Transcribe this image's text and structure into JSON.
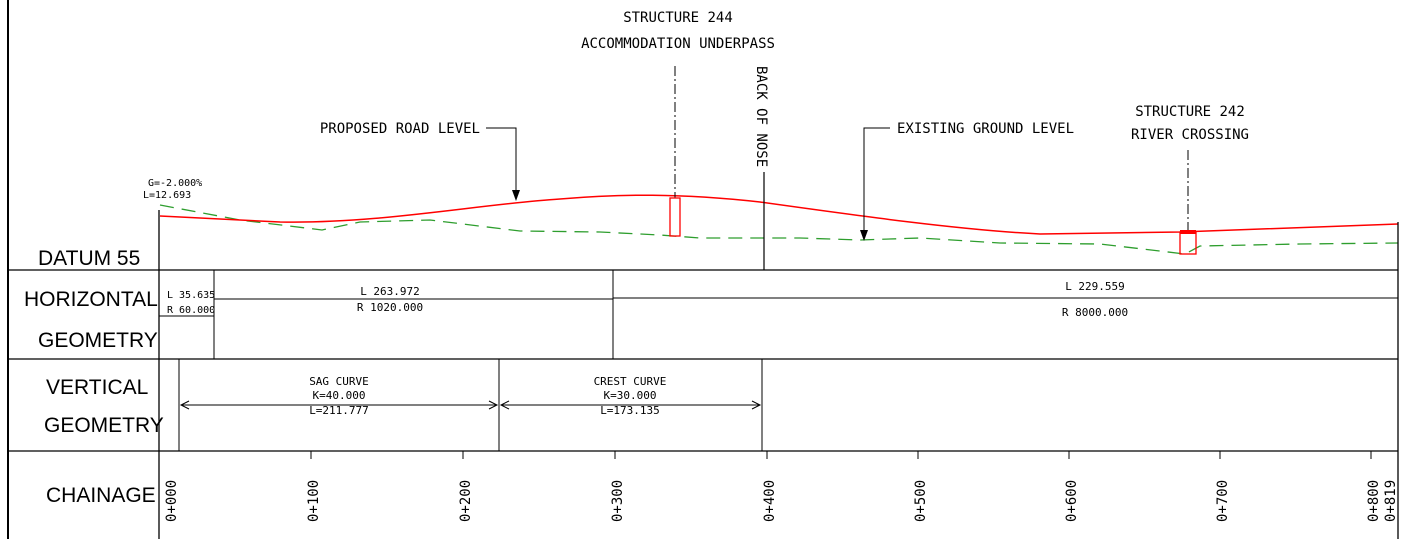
{
  "labels": {
    "structure_244_title": "STRUCTURE 244",
    "structure_244_desc": "ACCOMMODATION UNDERPASS",
    "structure_242_title": "STRUCTURE 242",
    "structure_242_desc": "RIVER CROSSING",
    "proposed_road_level": "PROPOSED ROAD LEVEL",
    "existing_ground_level": "EXISTING GROUND LEVEL",
    "back_of_nose": "BACK OF NOSE",
    "grade": "G=-2.000%",
    "grade_length": "L=12.693",
    "datum": "DATUM 55"
  },
  "rows": {
    "horizontal_line1": "HORIZONTAL",
    "horizontal_line2": "GEOMETRY",
    "vertical_line1": "VERTICAL",
    "vertical_line2": "GEOMETRY",
    "chainage": "CHAINAGE"
  },
  "horizontal_geometry": [
    {
      "length": "L 35.635",
      "radius": "R 60.000"
    },
    {
      "length": "L 263.972",
      "radius": "R 1020.000"
    },
    {
      "length": "L 229.559",
      "radius": "R 8000.000"
    }
  ],
  "vertical_geometry": [
    {
      "name": "SAG CURVE",
      "k": "K=40.000",
      "length": "L=211.777"
    },
    {
      "name": "CREST CURVE",
      "k": "K=30.000",
      "length": "L=173.135"
    }
  ],
  "chainage_ticks": [
    "0+000",
    "0+100",
    "0+200",
    "0+300",
    "0+400",
    "0+500",
    "0+600",
    "0+700",
    "0+800",
    "0+819"
  ],
  "colors": {
    "proposed_road": "#ff0000",
    "existing_ground": "#2e9e2e",
    "structure": "#ff0000",
    "line": "#000000"
  }
}
